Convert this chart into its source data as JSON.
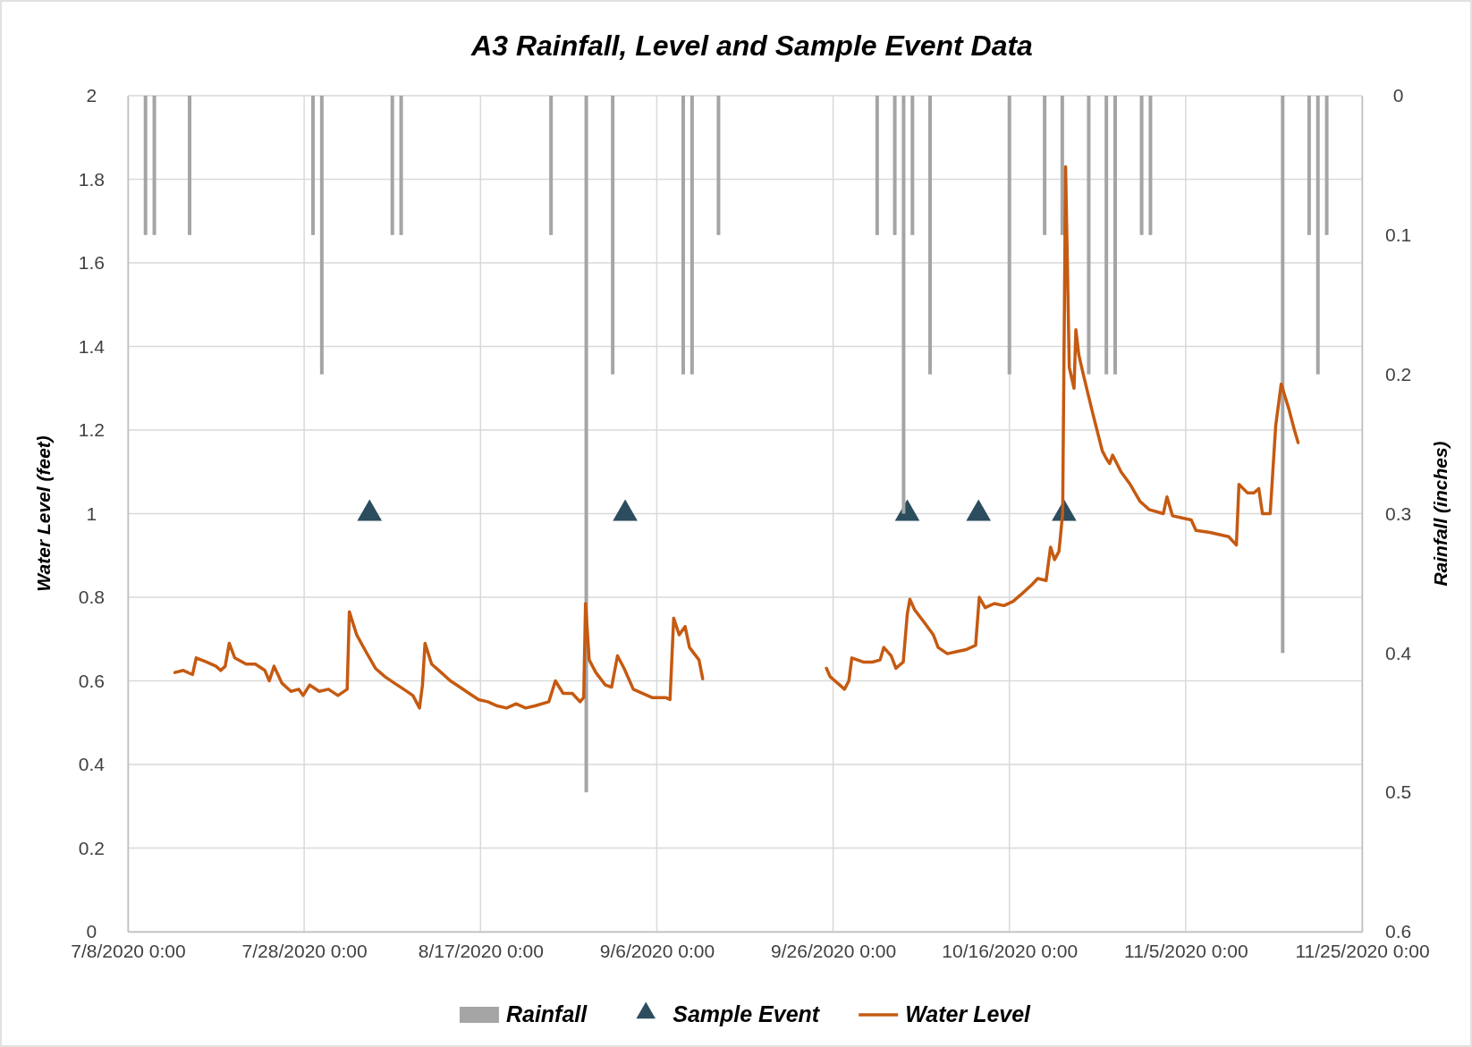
{
  "chart_data": {
    "type": "line",
    "title": "A3 Rainfall, Level and Sample Event Data",
    "ylabel": "Water Level (feet)",
    "y2label": "Rainfall (inches)",
    "xlim": [
      "2020-07-08",
      "2020-11-25"
    ],
    "xticks": [
      {
        "value": "2020-07-08",
        "label": "7/8/2020 0:00"
      },
      {
        "value": "2020-07-28",
        "label": "7/28/2020 0:00"
      },
      {
        "value": "2020-08-17",
        "label": "8/17/2020 0:00"
      },
      {
        "value": "2020-09-06",
        "label": "9/6/2020 0:00"
      },
      {
        "value": "2020-09-26",
        "label": "9/26/2020 0:00"
      },
      {
        "value": "2020-10-16",
        "label": "10/16/2020 0:00"
      },
      {
        "value": "2020-11-05",
        "label": "11/5/2020 0:00"
      },
      {
        "value": "2020-11-25",
        "label": "11/25/2020 0:00"
      }
    ],
    "ylim": [
      0,
      2
    ],
    "yticks": [
      0,
      0.2,
      0.4,
      0.6,
      0.8,
      1,
      1.2,
      1.4,
      1.6,
      1.8,
      2
    ],
    "y2lim": [
      0.6,
      0
    ],
    "y2ticks": [
      0,
      0.1,
      0.2,
      0.3,
      0.4,
      0.5,
      0.6
    ],
    "grid": true,
    "legend": "bottom",
    "series": [
      {
        "name": "Rainfall",
        "type": "bar",
        "axis": "y2",
        "color": "#a5a5a5",
        "x": [
          "2020-07-10",
          "2020-07-11",
          "2020-07-15",
          "2020-07-29",
          "2020-07-30",
          "2020-08-07",
          "2020-08-08",
          "2020-08-25",
          "2020-08-29",
          "2020-09-01",
          "2020-09-09",
          "2020-09-10",
          "2020-09-13",
          "2020-10-01",
          "2020-10-03",
          "2020-10-04",
          "2020-10-05",
          "2020-10-07",
          "2020-10-16",
          "2020-10-20",
          "2020-10-22",
          "2020-10-25",
          "2020-10-27",
          "2020-10-28",
          "2020-10-31",
          "2020-11-01",
          "2020-11-16",
          "2020-11-19",
          "2020-11-20",
          "2020-11-21"
        ],
        "values": [
          0.1,
          0.1,
          0.1,
          0.1,
          0.2,
          0.1,
          0.1,
          0.1,
          0.5,
          0.2,
          0.2,
          0.2,
          0.1,
          0.1,
          0.1,
          0.3,
          0.1,
          0.2,
          0.2,
          0.1,
          0.1,
          0.2,
          0.2,
          0.2,
          0.1,
          0.1,
          0.4,
          0.1,
          0.2,
          0.1
        ]
      },
      {
        "name": "Sample Event",
        "type": "scatter",
        "marker": "triangle",
        "color": "#2b4d5e",
        "x": [
          "2020-08-04T10:00",
          "2020-09-02T10:00",
          "2020-10-04T10:00",
          "2020-10-12T12:00",
          "2020-10-22T05:00"
        ],
        "values": [
          1,
          1,
          1,
          1,
          1
        ]
      },
      {
        "name": "Water Level",
        "color": "#c55a11",
        "x": [
          "2020-07-13T08:00",
          "2020-07-14T07:00",
          "2020-07-15T08:00",
          "2020-07-15T18:00",
          "2020-07-16T22:00",
          "2020-07-18T00:00",
          "2020-07-18T13:00",
          "2020-07-19T01:00",
          "2020-07-19T12:00",
          "2020-07-20T03:00",
          "2020-07-21T10:00",
          "2020-07-22T11:00",
          "2020-07-23T13:00",
          "2020-07-24T01:00",
          "2020-07-24T14:00",
          "2020-07-25T11:00",
          "2020-07-26T12:00",
          "2020-07-27T09:00",
          "2020-07-27T21:00",
          "2020-07-28T15:00",
          "2020-07-29T17:00",
          "2020-07-30T18:00",
          "2020-07-31T20:00",
          "2020-08-01T21:00",
          "2020-08-02T03:00",
          "2020-08-02T23:00",
          "2020-08-04T00:00",
          "2020-08-05T02:00",
          "2020-08-06T04:00",
          "2020-08-07T05:00",
          "2020-08-08T07:00",
          "2020-08-09T08:00",
          "2020-08-10T02:00",
          "2020-08-10T10:00",
          "2020-08-10T17:00",
          "2020-08-11T11:00",
          "2020-08-12T13:00",
          "2020-08-13T14:00",
          "2020-08-14T16:00",
          "2020-08-15T17:00",
          "2020-08-16T19:00",
          "2020-08-17T20:00",
          "2020-08-18T22:00",
          "2020-08-19T23:00",
          "2020-08-21T01:00",
          "2020-08-22T03:00",
          "2020-08-23T04:00",
          "2020-08-24T18:00",
          "2020-08-25T12:00",
          "2020-08-26T09:00",
          "2020-08-27T10:00",
          "2020-08-28T07:00",
          "2020-08-28T17:00",
          "2020-08-28T22:00",
          "2020-08-29T08:00",
          "2020-08-30T02:00",
          "2020-08-31T04:00",
          "2020-08-31T21:00",
          "2020-09-01T13:00",
          "2020-09-02T07:00",
          "2020-09-03T08:00",
          "2020-09-04T10:00",
          "2020-09-05T11:00",
          "2020-09-07T01:00",
          "2020-09-07T12:00",
          "2020-09-07T22:00",
          "2020-09-08T13:00",
          "2020-09-09T05:00",
          "2020-09-09T17:00",
          "2020-09-10T19:00",
          "2020-09-11T05:00",
          "2020-09-18T00:00",
          "2020-09-25T06:00",
          "2020-09-25T16:00",
          "2020-09-26T18:00",
          "2020-09-27T07:00",
          "2020-09-27T19:00",
          "2020-09-28T03:00",
          "2020-09-29T10:00",
          "2020-09-30T11:00",
          "2020-10-01T08:00",
          "2020-10-01T18:00",
          "2020-10-02T14:00",
          "2020-10-03T03:00",
          "2020-10-03T16:00",
          "2020-10-03T23:00",
          "2020-10-04T10:00",
          "2020-10-04T17:00",
          "2020-10-05T06:00",
          "2020-10-06T08:00",
          "2020-10-07T09:00",
          "2020-10-07T22:00",
          "2020-10-08T23:00",
          "2020-10-10T01:00",
          "2020-10-11T03:00",
          "2020-10-12T04:00",
          "2020-10-12T14:00",
          "2020-10-13T06:00",
          "2020-10-14T07:00",
          "2020-10-15T09:00",
          "2020-10-16T10:00",
          "2020-10-17T12:00",
          "2020-10-18T13:00",
          "2020-10-19T05:00",
          "2020-10-20T04:00",
          "2020-10-20T16:00",
          "2020-10-21T03:00",
          "2020-10-21T15:00",
          "2020-10-22T01:00",
          "2020-10-22T09:00",
          "2020-10-22T19:00",
          "2020-10-23T08:00",
          "2020-10-23T13:00",
          "2020-10-23T21:00",
          "2020-10-24T10:00",
          "2020-10-25T11:00",
          "2020-10-26T13:00",
          "2020-10-27T01:00",
          "2020-10-27T09:00",
          "2020-10-27T17:00",
          "2020-10-28T16:00",
          "2020-10-29T17:00",
          "2020-10-30T19:00",
          "2020-10-31T20:00",
          "2020-11-02T11:00",
          "2020-11-02T21:00",
          "2020-11-03T12:00",
          "2020-11-04T14:00",
          "2020-11-05T15:00",
          "2020-11-06T04:00",
          "2020-11-07T18:00",
          "2020-11-09T21:00",
          "2020-11-10T18:00",
          "2020-11-11T01:00",
          "2020-11-12T00:00",
          "2020-11-12T18:00",
          "2020-11-13T07:00",
          "2020-11-13T17:00",
          "2020-11-14T14:00",
          "2020-11-15T05:00",
          "2020-11-15T20:00",
          "2020-11-16T17:00",
          "2020-11-17T08:00",
          "2020-11-17T18:00"
        ],
        "values": [
          0.62,
          0.625,
          0.615,
          0.655,
          0.645,
          0.635,
          0.625,
          0.635,
          0.69,
          0.655,
          0.64,
          0.64,
          0.625,
          0.6,
          0.635,
          0.595,
          0.575,
          0.58,
          0.565,
          0.59,
          0.575,
          0.58,
          0.565,
          0.58,
          0.765,
          0.71,
          0.67,
          0.63,
          0.61,
          0.595,
          0.58,
          0.565,
          0.535,
          0.59,
          0.69,
          0.64,
          0.62,
          0.6,
          0.585,
          0.57,
          0.555,
          0.55,
          0.54,
          0.535,
          0.545,
          0.535,
          0.54,
          0.55,
          0.6,
          0.57,
          0.57,
          0.55,
          0.56,
          0.785,
          0.65,
          0.62,
          0.59,
          0.585,
          0.66,
          0.63,
          0.58,
          0.57,
          0.56,
          0.56,
          0.555,
          0.75,
          0.71,
          0.73,
          0.68,
          0.65,
          0.605,
          null,
          0.63,
          0.61,
          0.59,
          0.58,
          0.6,
          0.655,
          0.645,
          0.645,
          0.65,
          0.68,
          0.66,
          0.63,
          0.64,
          0.645,
          0.76,
          0.795,
          0.77,
          0.74,
          0.71,
          0.68,
          0.665,
          0.67,
          0.675,
          0.685,
          0.8,
          0.775,
          0.785,
          0.78,
          0.79,
          0.81,
          0.83,
          0.845,
          0.84,
          0.92,
          0.89,
          0.91,
          1.0,
          1.83,
          1.35,
          1.3,
          1.44,
          1.38,
          1.33,
          1.24,
          1.15,
          1.13,
          1.12,
          1.14,
          1.1,
          1.07,
          1.03,
          1.01,
          1.0,
          1.04,
          0.995,
          0.99,
          0.985,
          0.96,
          0.955,
          0.945,
          0.925,
          1.07,
          1.05,
          1.05,
          1.06,
          1.0,
          1.0,
          1.21,
          1.31,
          1.25,
          1.2,
          1.17
        ]
      }
    ]
  }
}
